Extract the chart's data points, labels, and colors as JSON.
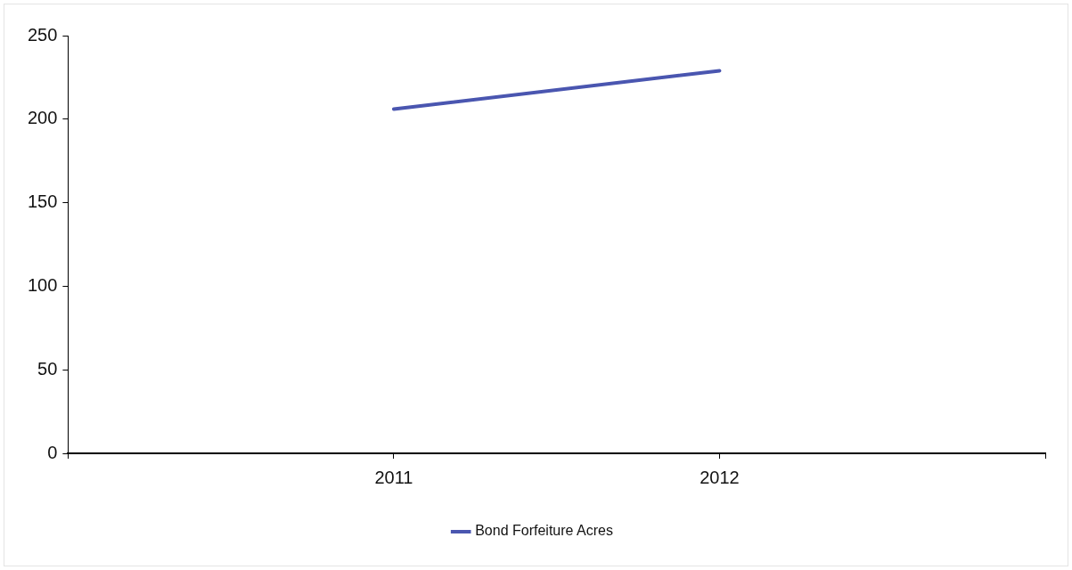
{
  "chart_data": {
    "type": "line",
    "categories": [
      null,
      "2011",
      "2012",
      null
    ],
    "series": [
      {
        "name": "Bond Forfeiture Acres",
        "color": "#4a56b0",
        "values": [
          null,
          206,
          229,
          null
        ]
      }
    ],
    "ylim": [
      0,
      250
    ],
    "yticks": [
      0,
      50,
      100,
      150,
      200,
      250
    ],
    "grid": false,
    "legend": "bottom",
    "marker": "none",
    "line_style": "solid"
  }
}
